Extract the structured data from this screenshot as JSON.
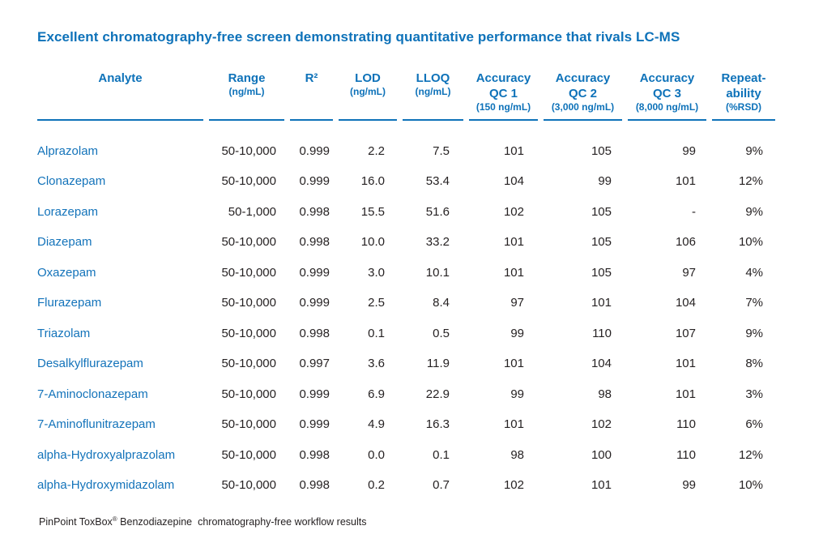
{
  "title": "Excellent chromatography-free screen demonstrating quantitative performance that rivals LC-MS",
  "colors": {
    "accent_blue": "#0e72b9",
    "analyte_blue": "#1373ba",
    "text_dark": "#262223"
  },
  "table": {
    "columns": [
      {
        "label": "Analyte",
        "sub": ""
      },
      {
        "label": "Range",
        "sub": "(ng/mL)"
      },
      {
        "label": "R²",
        "sub": ""
      },
      {
        "label": "LOD",
        "sub": "(ng/mL)"
      },
      {
        "label": "LLOQ",
        "sub": "(ng/mL)"
      },
      {
        "label": "Accuracy\nQC 1",
        "sub": "(150 ng/mL)"
      },
      {
        "label": "Accuracy\nQC 2",
        "sub": "(3,000 ng/mL)"
      },
      {
        "label": "Accuracy\nQC 3",
        "sub": "(8,000 ng/mL)"
      },
      {
        "label": "Repeat-\nability",
        "sub": "(%RSD)"
      }
    ],
    "rows": [
      [
        "Alprazolam",
        "50-10,000",
        "0.999",
        "2.2",
        "7.5",
        "101",
        "105",
        "99",
        "9%"
      ],
      [
        "Clonazepam",
        "50-10,000",
        "0.999",
        "16.0",
        "53.4",
        "104",
        "99",
        "101",
        "12%"
      ],
      [
        "Lorazepam",
        "50-1,000",
        "0.998",
        "15.5",
        "51.6",
        "102",
        "105",
        "-",
        "9%"
      ],
      [
        "Diazepam",
        "50-10,000",
        "0.998",
        "10.0",
        "33.2",
        "101",
        "105",
        "106",
        "10%"
      ],
      [
        "Oxazepam",
        "50-10,000",
        "0.999",
        "3.0",
        "10.1",
        "101",
        "105",
        "97",
        "4%"
      ],
      [
        "Flurazepam",
        "50-10,000",
        "0.999",
        "2.5",
        "8.4",
        "97",
        "101",
        "104",
        "7%"
      ],
      [
        "Triazolam",
        "50-10,000",
        "0.998",
        "0.1",
        "0.5",
        "99",
        "110",
        "107",
        "9%"
      ],
      [
        "Desalkylflurazepam",
        "50-10,000",
        "0.997",
        "3.6",
        "11.9",
        "101",
        "104",
        "101",
        "8%"
      ],
      [
        "7-Aminoclonazepam",
        "50-10,000",
        "0.999",
        "6.9",
        "22.9",
        "99",
        "98",
        "101",
        "3%"
      ],
      [
        "7-Aminoflunitrazepam",
        "50-10,000",
        "0.999",
        "4.9",
        "16.3",
        "101",
        "102",
        "110",
        "6%"
      ],
      [
        "alpha-Hydroxyalprazolam",
        "50-10,000",
        "0.998",
        "0.0",
        "0.1",
        "98",
        "100",
        "110",
        "12%"
      ],
      [
        "alpha-Hydroxymidazolam",
        "50-10,000",
        "0.998",
        "0.2",
        "0.7",
        "102",
        "101",
        "99",
        "10%"
      ]
    ]
  },
  "footer": {
    "product": "PinPoint ToxBox",
    "reg_mark": "®",
    "rest": " Benzodiazepine  chromatography-free workflow results"
  }
}
